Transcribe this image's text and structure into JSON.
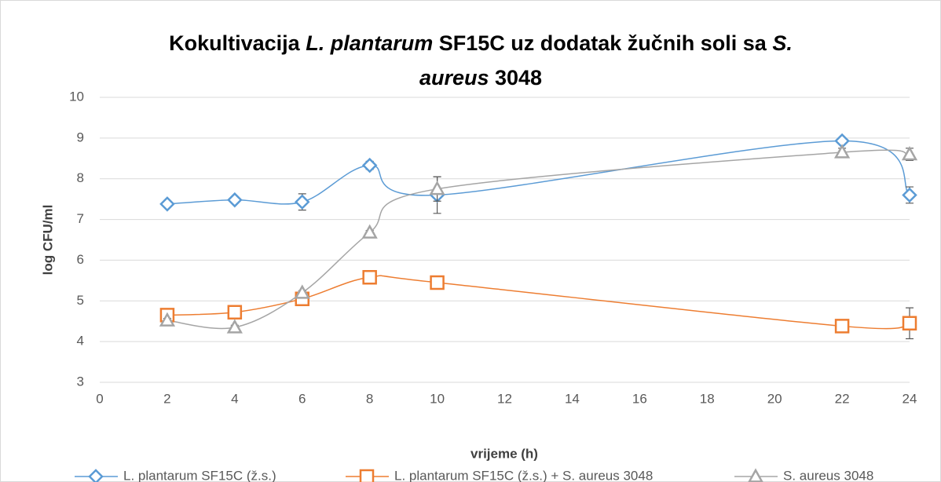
{
  "chart_data": {
    "type": "line",
    "title_lines": [
      [
        {
          "text": "Kokultivacija ",
          "italic": false
        },
        {
          "text": "L. plantarum",
          "italic": true
        },
        {
          "text": " SF15C uz dodatak žučnih soli sa ",
          "italic": false
        },
        {
          "text": "S.",
          "italic": true
        }
      ],
      [
        {
          "text": "aureus",
          "italic": true
        },
        {
          "text": " 3048",
          "italic": false
        }
      ]
    ],
    "x_label": "vrijeme (h)",
    "y_label": "log CFU/ml",
    "x": [
      2,
      4,
      6,
      8,
      10,
      22,
      24
    ],
    "series": [
      {
        "name": "L. plantarum SF15C (ž.s.)",
        "color": "#5b9bd5",
        "marker": "diamond",
        "values": [
          7.38,
          7.48,
          7.43,
          8.33,
          7.6,
          8.93,
          7.6
        ],
        "errors": [
          0.03,
          0.03,
          0.2,
          0.1,
          0.45,
          0.05,
          0.2
        ]
      },
      {
        "name": "L. plantarum SF15C (ž.s.) + S. aureus 3048",
        "color": "#ed7d31",
        "marker": "square",
        "values": [
          4.65,
          4.72,
          5.05,
          5.58,
          5.45,
          4.38,
          4.45
        ],
        "errors": [
          0.05,
          0.05,
          0.05,
          0.05,
          0.05,
          0.05,
          0.38
        ]
      },
      {
        "name": "S. aureus 3048",
        "color": "#a5a5a5",
        "marker": "triangle",
        "values": [
          4.52,
          4.35,
          5.2,
          6.68,
          7.75,
          8.65,
          8.6
        ],
        "errors": [
          0.05,
          0.05,
          0.05,
          0.05,
          0.3,
          0.1,
          0.15
        ]
      }
    ],
    "xlim": [
      0,
      24
    ],
    "xticks": [
      0,
      2,
      4,
      6,
      8,
      10,
      12,
      14,
      16,
      18,
      20,
      22,
      24
    ],
    "ylim": [
      3,
      10
    ],
    "yticks": [
      3,
      4,
      5,
      6,
      7,
      8,
      9,
      10
    ],
    "grid": true,
    "legend": "bottom"
  }
}
